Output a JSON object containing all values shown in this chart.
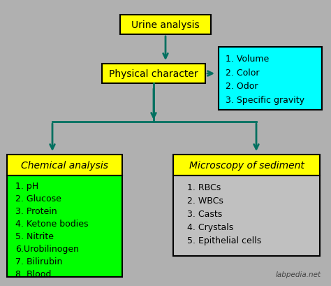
{
  "background_color": "#b0b0b0",
  "title_text": "Urine analysis",
  "title_box_color": "#ffff00",
  "physical_text": "Physical character",
  "physical_box_color": "#ffff00",
  "physical_side_text": "1. Volume\n2. Color\n2. Odor\n3. Specific gravity",
  "physical_side_box_color": "#00ffff",
  "chemical_label_text": "Chemical analysis",
  "chemical_label_box_color": "#ffff00",
  "chemical_list_text": "1. pH\n2. Glucose\n3. Protein\n4. Ketone bodies\n5. Nitrite\n6.Urobilinogen\n7. Bilirubin\n8. Blood",
  "chemical_list_box_color": "#00ff00",
  "microscopy_label_text": "Microscopy of sediment",
  "microscopy_label_box_color": "#ffff00",
  "microscopy_list_text": "1. RBCs\n2. WBCs\n3. Casts\n4. Crystals\n5. Epithelial cells",
  "microscopy_list_box_color": "#c0c0c0",
  "arrow_color": "#007060",
  "watermark": "labpedia.net",
  "font_color": "#000000"
}
